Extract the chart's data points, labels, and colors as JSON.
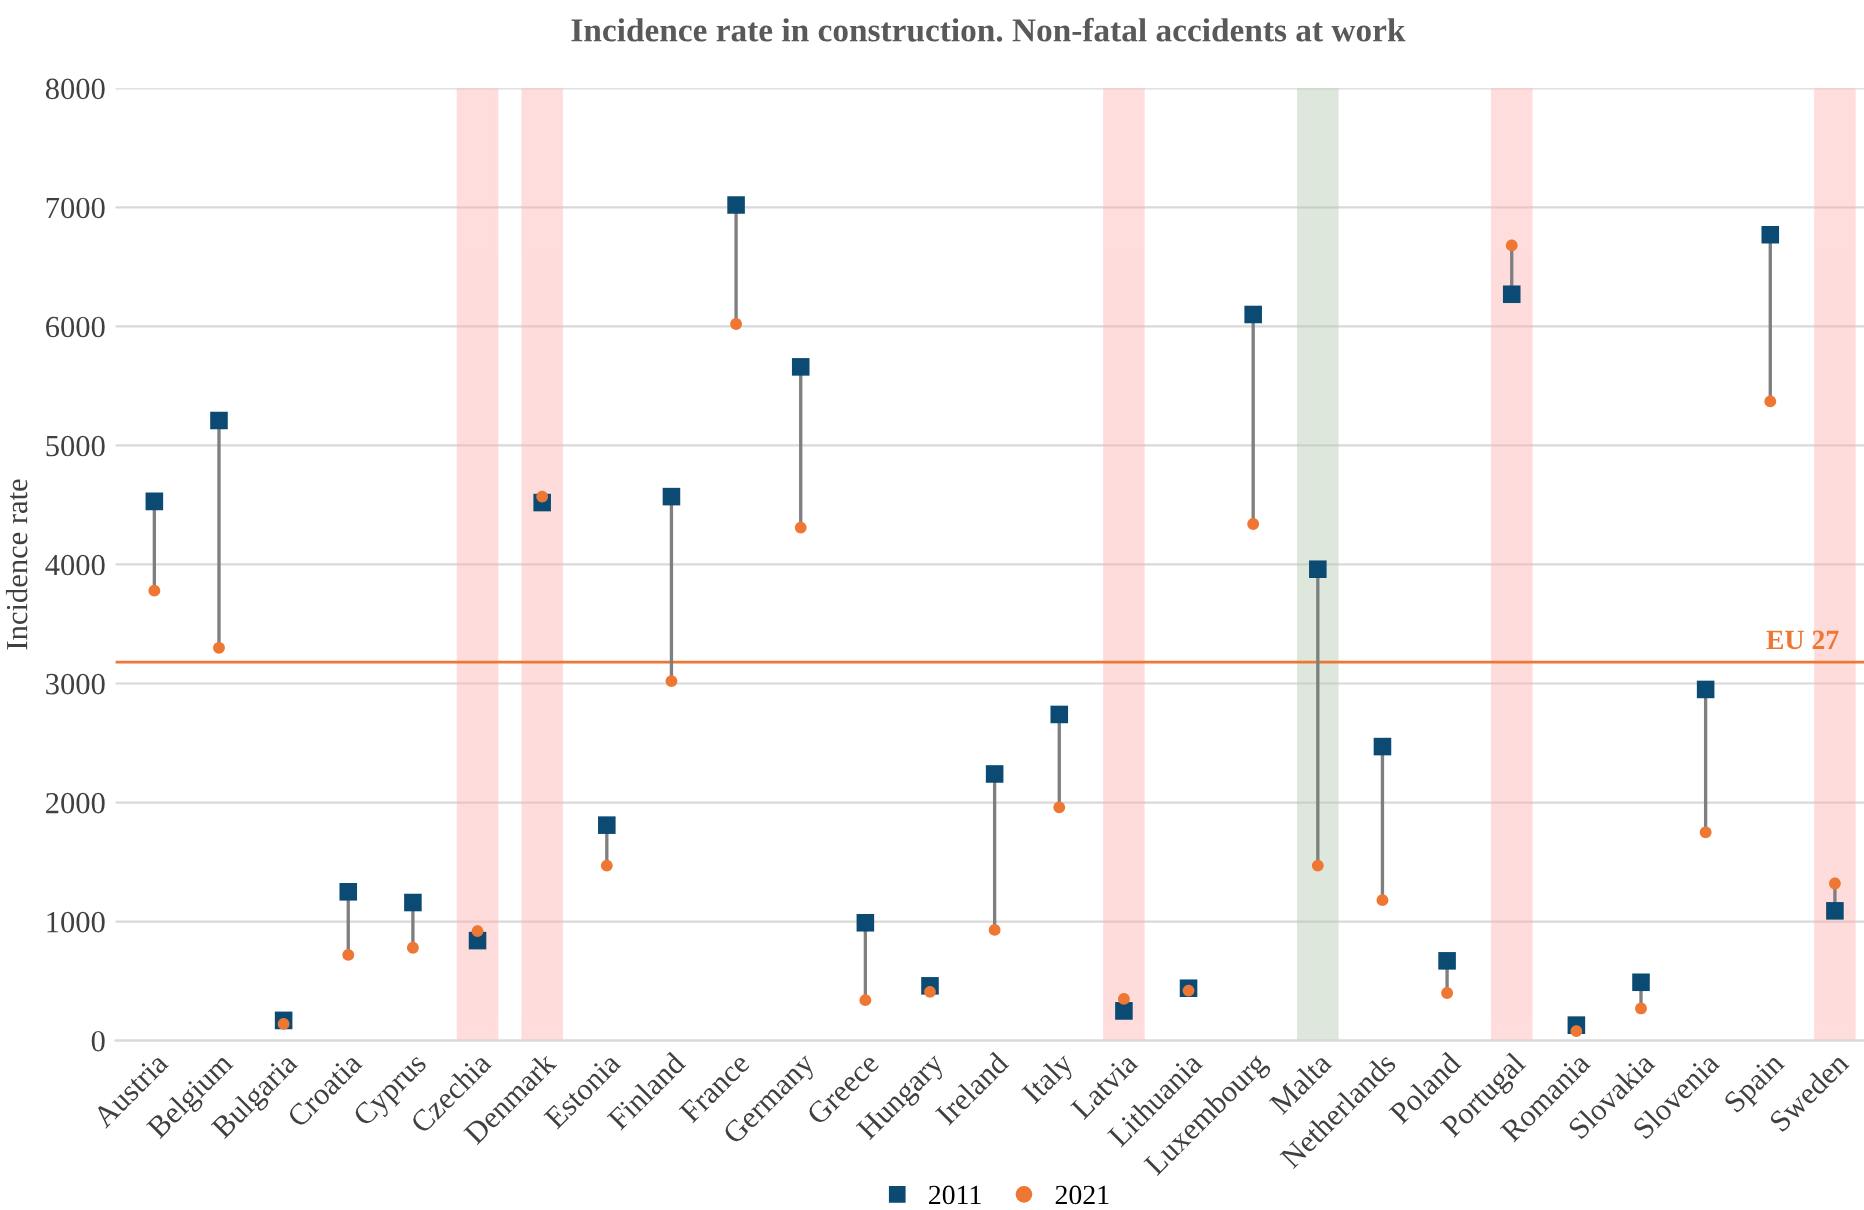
{
  "chart_data": {
    "type": "scatter",
    "title": "Incidence rate in construction. Non-fatal accidents at work",
    "ylabel": "Incidence rate",
    "categories": [
      "Austria",
      "Belgium",
      "Bulgaria",
      "Croatia",
      "Cyprus",
      "Czechia",
      "Denmark",
      "Estonia",
      "Finland",
      "France",
      "Germany",
      "Greece",
      "Hungary",
      "Ireland",
      "Italy",
      "Latvia",
      "Lithuania",
      "Luxembourg",
      "Malta",
      "Netherlands",
      "Poland",
      "Portugal",
      "Romania",
      "Slovakia",
      "Slovenia",
      "Spain",
      "Sweden"
    ],
    "series": [
      {
        "name": "2011",
        "color": "#0b4a72",
        "marker": "square",
        "values": [
          4530,
          5210,
          170,
          1250,
          1160,
          840,
          4520,
          1810,
          4570,
          7020,
          5660,
          990,
          460,
          2240,
          2740,
          250,
          440,
          6100,
          3960,
          2470,
          670,
          6270,
          130,
          490,
          2950,
          6770,
          1090
        ]
      },
      {
        "name": "2021",
        "color": "#ee7733",
        "marker": "circle",
        "values": [
          3780,
          3300,
          140,
          720,
          780,
          920,
          4570,
          1470,
          3020,
          6020,
          4310,
          340,
          410,
          930,
          1960,
          350,
          420,
          4340,
          1470,
          1180,
          400,
          6680,
          80,
          270,
          1750,
          5370,
          1320
        ]
      }
    ],
    "ylim": [
      0,
      8000
    ],
    "yticks": [
      0,
      1000,
      2000,
      3000,
      4000,
      5000,
      6000,
      7000,
      8000
    ],
    "grid": "y",
    "legend": "bottom",
    "ref_lines": [
      {
        "axis": "y",
        "value": 3180,
        "label": "EU 27",
        "color": "#ee7733"
      }
    ],
    "bands": [
      {
        "axis": "x",
        "from": "Czechia",
        "to": "Czechia",
        "color": "#ffb3b3"
      },
      {
        "axis": "x",
        "from": "Denmark",
        "to": "Denmark",
        "color": "#ffb3b3"
      },
      {
        "axis": "x",
        "from": "Latvia",
        "to": "Latvia",
        "color": "#ffb3b3"
      },
      {
        "axis": "x",
        "from": "Malta",
        "to": "Malta",
        "color": "#b5cbb0"
      },
      {
        "axis": "x",
        "from": "Portugal",
        "to": "Portugal",
        "color": "#ffb3b3"
      },
      {
        "axis": "x",
        "from": "Sweden",
        "to": "Sweden",
        "color": "#ffb3b3"
      }
    ]
  }
}
